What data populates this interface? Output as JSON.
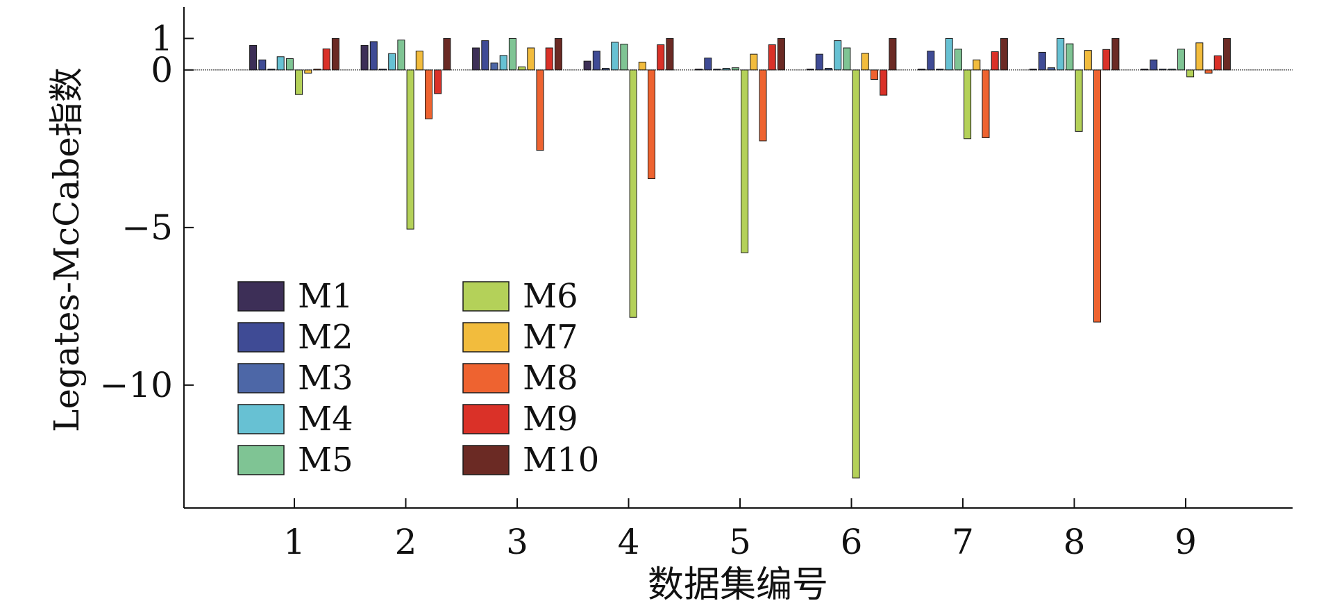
{
  "chart_data": {
    "type": "bar",
    "title": "",
    "xlabel": "数据集编号",
    "ylabel": "Legates-McCabe指数",
    "categories": [
      "1",
      "2",
      "3",
      "4",
      "5",
      "6",
      "7",
      "8",
      "9"
    ],
    "ylim": [
      -13.9,
      2.0
    ],
    "yticks": [
      1,
      0,
      -5,
      -10
    ],
    "ytick_labels": [
      "1",
      "0",
      "-5",
      "-10"
    ],
    "grid": false,
    "legend": {
      "position": "lower-left",
      "columns": 2
    },
    "zero_line": true,
    "series": [
      {
        "name": "M1",
        "color": "#3d2f57",
        "values": [
          0.78,
          0.78,
          0.7,
          0.28,
          0.03,
          0.03,
          0.03,
          0.03,
          0.03
        ]
      },
      {
        "name": "M2",
        "color": "#3f4b95",
        "values": [
          0.32,
          0.9,
          0.93,
          0.6,
          0.38,
          0.5,
          0.6,
          0.56,
          0.32
        ]
      },
      {
        "name": "M3",
        "color": "#4d67a7",
        "values": [
          0.03,
          0.03,
          0.22,
          0.05,
          0.03,
          0.05,
          0.03,
          0.07,
          0.03
        ]
      },
      {
        "name": "M4",
        "color": "#67c1d3",
        "values": [
          0.42,
          0.52,
          0.46,
          0.88,
          0.05,
          0.93,
          1.0,
          1.0,
          0.03
        ]
      },
      {
        "name": "M5",
        "color": "#7fc494",
        "values": [
          0.36,
          0.95,
          1.0,
          0.82,
          0.07,
          0.7,
          0.66,
          0.83,
          0.66
        ]
      },
      {
        "name": "M6",
        "color": "#b4d159",
        "values": [
          -0.78,
          -5.05,
          0.1,
          -7.85,
          -5.8,
          -12.95,
          -2.18,
          -1.95,
          -0.22
        ]
      },
      {
        "name": "M7",
        "color": "#f2bc3d",
        "values": [
          -0.1,
          0.6,
          0.7,
          0.25,
          0.5,
          0.53,
          0.32,
          0.62,
          0.86
        ]
      },
      {
        "name": "M8",
        "color": "#ee6330",
        "values": [
          0.03,
          -1.55,
          -2.55,
          -3.45,
          -2.25,
          -0.3,
          -2.15,
          -8.0,
          -0.1
        ]
      },
      {
        "name": "M9",
        "color": "#da3128",
        "values": [
          0.67,
          -0.75,
          0.7,
          0.8,
          0.8,
          -0.8,
          0.58,
          0.65,
          0.45
        ]
      },
      {
        "name": "M10",
        "color": "#6b2a24",
        "values": [
          1.0,
          1.0,
          1.0,
          1.0,
          1.0,
          1.0,
          1.0,
          1.0,
          1.0
        ]
      }
    ]
  }
}
